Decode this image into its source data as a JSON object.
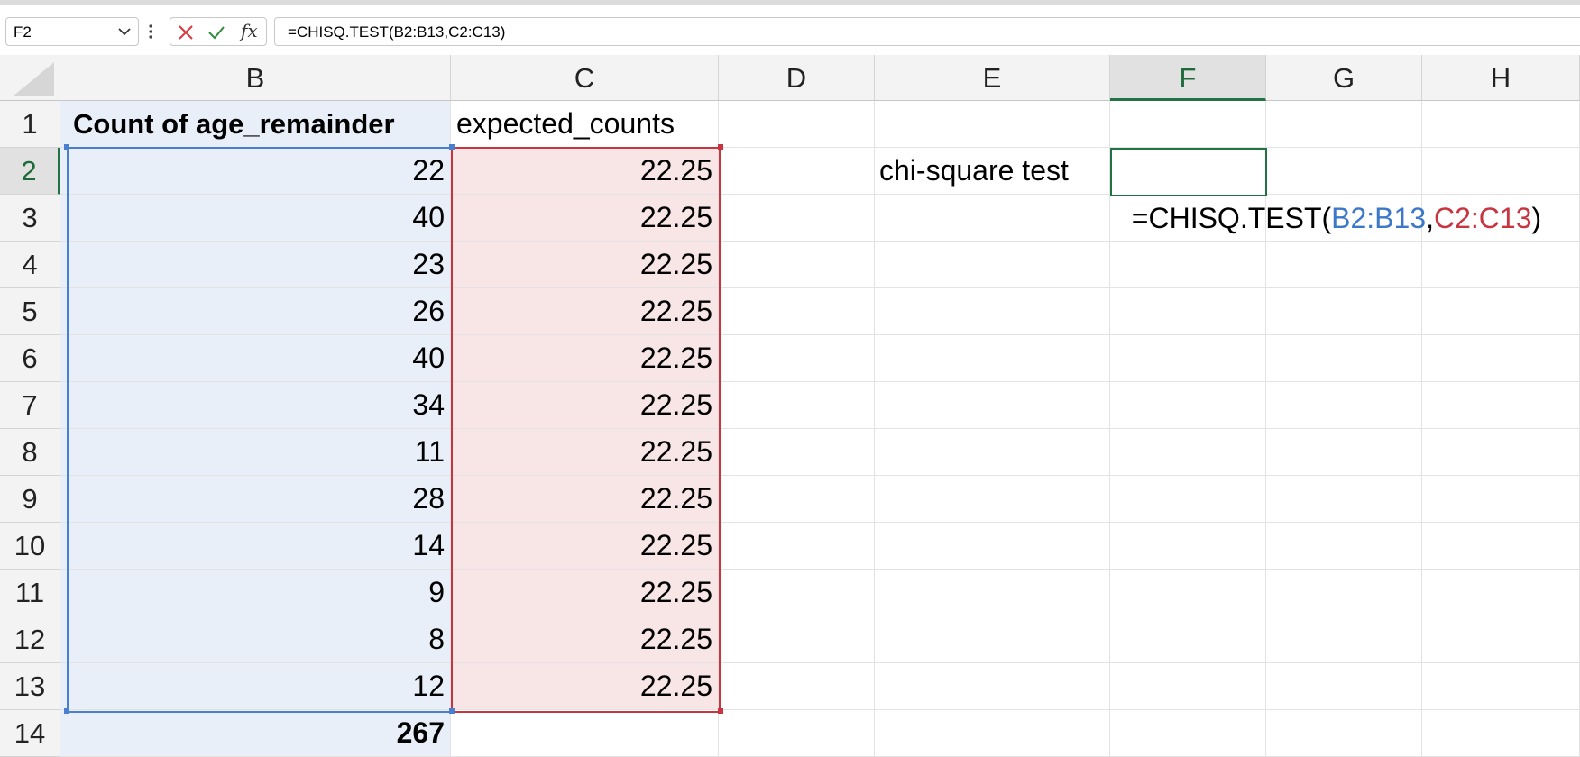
{
  "formula_bar": {
    "name_box": "F2",
    "formula": "=CHISQ.TEST(B2:B13,C2:C13)",
    "fx_label": "fx",
    "icons": [
      "chevron-down-icon",
      "more-vertical-icon",
      "cancel-x-icon",
      "confirm-check-icon",
      "function-fx-icon"
    ]
  },
  "columns": [
    "B",
    "C",
    "D",
    "E",
    "F",
    "G",
    "H"
  ],
  "rows": [
    "1",
    "2",
    "3",
    "4",
    "5",
    "6",
    "7",
    "8",
    "9",
    "10",
    "11",
    "12",
    "13",
    "14"
  ],
  "cells": {
    "B1": "Count of age_remainder",
    "C1": "expected_counts",
    "B2": "22",
    "B3": "40",
    "B4": "23",
    "B5": "26",
    "B6": "40",
    "B7": "34",
    "B8": "11",
    "B9": "28",
    "B10": "14",
    "B11": "9",
    "B12": "8",
    "B13": "12",
    "B14": "267",
    "C2": "22.25",
    "C3": "22.25",
    "C4": "22.25",
    "C5": "22.25",
    "C6": "22.25",
    "C7": "22.25",
    "C8": "22.25",
    "C9": "22.25",
    "C10": "22.25",
    "C11": "22.25",
    "C12": "22.25",
    "C13": "22.25",
    "E2": "chi-square test"
  },
  "editing": {
    "cell": "F2",
    "prefix": "=CHISQ.TEST(",
    "ref1": "B2:B13",
    "sep": ",",
    "ref2": "C2:C13",
    "suffix": ")"
  },
  "colors": {
    "selection_green": "#217346",
    "range_blue": "#4a7fd0",
    "range_red": "#c8343f",
    "blue_fill": "#e8eff8",
    "pink_fill": "#f8e6e7"
  }
}
